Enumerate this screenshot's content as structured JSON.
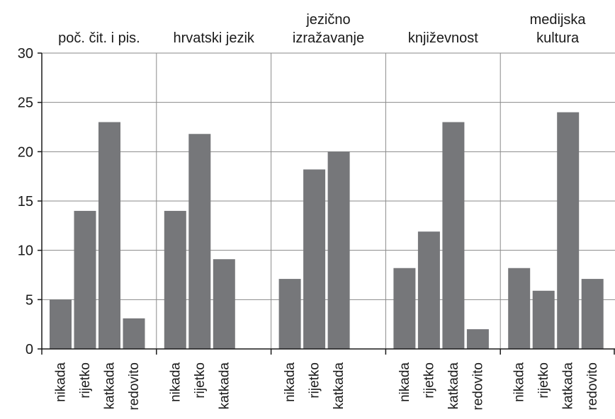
{
  "chart_data": {
    "type": "bar",
    "ylim": [
      0,
      30
    ],
    "yticks": [
      "0",
      "5",
      "10",
      "15",
      "20",
      "25",
      "30"
    ],
    "ytick_values": [
      0,
      5,
      10,
      15,
      20,
      25,
      30
    ],
    "grid": true,
    "bar_color": "#76777a",
    "panels": [
      {
        "title": [
          "poč. čit. i pis."
        ],
        "categories": [
          "nikada",
          "rijetko",
          "katkada",
          "redovito"
        ],
        "values": [
          5,
          14,
          23,
          3.1
        ]
      },
      {
        "title": [
          "hrvatski jezik"
        ],
        "categories": [
          "nikada",
          "rijetko",
          "katkada"
        ],
        "values": [
          14,
          21.8,
          9.1
        ]
      },
      {
        "title": [
          "jezično",
          "izražavanje"
        ],
        "categories": [
          "nikada",
          "rijetko",
          "katkada"
        ],
        "values": [
          7.1,
          18.2,
          20
        ]
      },
      {
        "title": [
          "književnost"
        ],
        "categories": [
          "nikada",
          "rijetko",
          "katkada",
          "redovito"
        ],
        "values": [
          8.2,
          11.9,
          23,
          2
        ]
      },
      {
        "title": [
          "medijska",
          "kultura"
        ],
        "categories": [
          "nikada",
          "rijetko",
          "katkada",
          "redovito"
        ],
        "values": [
          8.2,
          5.9,
          24,
          7.1
        ]
      }
    ]
  }
}
